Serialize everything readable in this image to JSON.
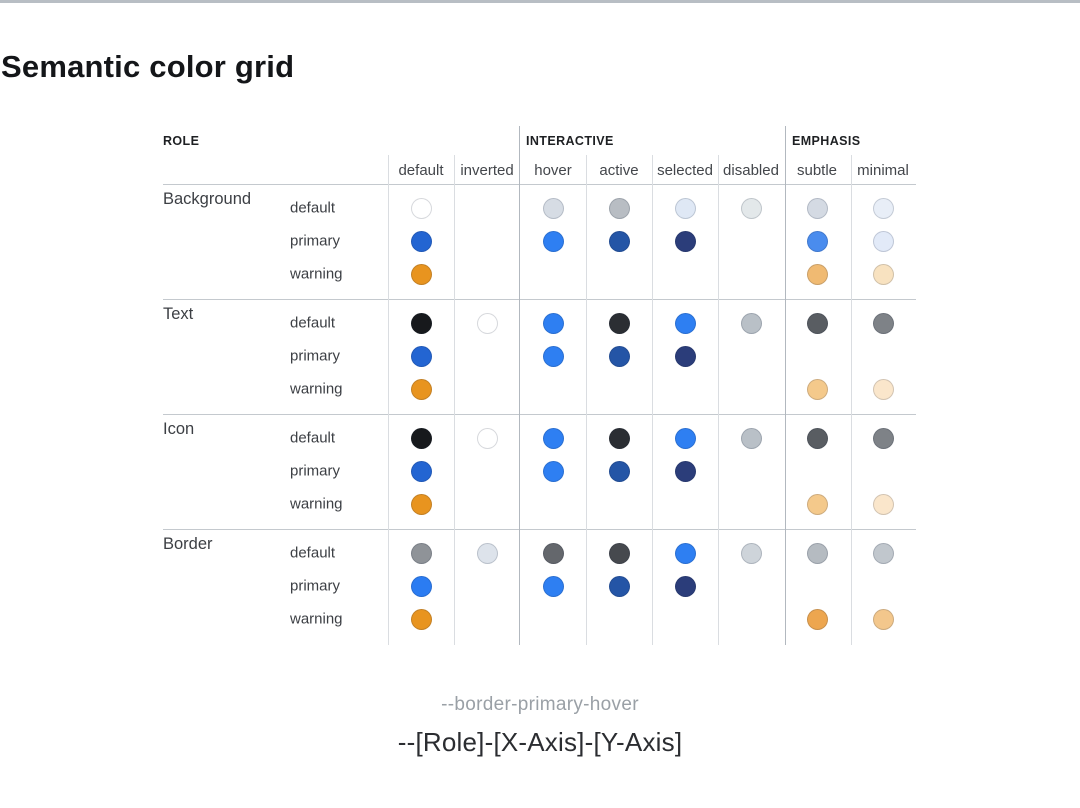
{
  "page": {
    "title": "Semantic color grid",
    "caption_example": "--border-primary-hover",
    "caption_formula": "--[Role]-[X-Axis]-[Y-Axis]"
  },
  "grid": {
    "group_headers": [
      {
        "id": "role",
        "label": "ROLE"
      },
      {
        "id": "interactive",
        "label": "INTERACTIVE"
      },
      {
        "id": "emphasis",
        "label": "EMPHASIS"
      }
    ],
    "columns": [
      "default",
      "inverted",
      "hover",
      "active",
      "selected",
      "disabled",
      "subtle",
      "minimal"
    ],
    "roles": [
      {
        "name": "Background",
        "rows": [
          {
            "variant": "default",
            "cells": [
              "#ffffff",
              null,
              "#d6dce4",
              "#b8bdc3",
              "#dfe8f5",
              "#e3e8ea",
              "#d4dae3",
              "#e8eef7"
            ]
          },
          {
            "variant": "primary",
            "cells": [
              "#2365d2",
              null,
              "#2e7ff2",
              "#2455a6",
              "#2b3d7a",
              null,
              "#4a8cee",
              "#e2eaf8"
            ]
          },
          {
            "variant": "warning",
            "cells": [
              "#e8941f",
              null,
              null,
              null,
              null,
              null,
              "#f0ba72",
              "#f8e2c0"
            ]
          }
        ]
      },
      {
        "name": "Text",
        "rows": [
          {
            "variant": "default",
            "cells": [
              "#17191c",
              "#ffffff",
              "#2e7ff2",
              "#2b2e33",
              "#2e7ff2",
              "#b9c0c7",
              "#595d62",
              "#7e8287"
            ]
          },
          {
            "variant": "primary",
            "cells": [
              "#2365d2",
              null,
              "#2e7ff2",
              "#2455a6",
              "#2b3d7a",
              null,
              null,
              null
            ]
          },
          {
            "variant": "warning",
            "cells": [
              "#e8941f",
              null,
              null,
              null,
              null,
              null,
              "#f4c98b",
              "#fae6cb"
            ]
          }
        ]
      },
      {
        "name": "Icon",
        "rows": [
          {
            "variant": "default",
            "cells": [
              "#17191c",
              "#ffffff",
              "#2e7ff2",
              "#2b2e33",
              "#2e7ff2",
              "#b9c0c7",
              "#595d62",
              "#7e8287"
            ]
          },
          {
            "variant": "primary",
            "cells": [
              "#2365d2",
              null,
              "#2e7ff2",
              "#2455a6",
              "#2b3d7a",
              null,
              null,
              null
            ]
          },
          {
            "variant": "warning",
            "cells": [
              "#e8941f",
              null,
              null,
              null,
              null,
              null,
              "#f4c98b",
              "#fae6cb"
            ]
          }
        ]
      },
      {
        "name": "Border",
        "rows": [
          {
            "variant": "default",
            "cells": [
              "#8f9398",
              "#dde3eb",
              "#64676c",
              "#46494e",
              "#2e7ff2",
              "#ced4da",
              "#b5bbc1",
              "#c1c7cd"
            ]
          },
          {
            "variant": "primary",
            "cells": [
              "#2b7cf2",
              null,
              "#2e7ff2",
              "#2455a6",
              "#2b3d7a",
              null,
              null,
              null
            ]
          },
          {
            "variant": "warning",
            "cells": [
              "#e8941f",
              null,
              null,
              null,
              null,
              null,
              "#eda64f",
              "#f3c78c"
            ]
          }
        ]
      }
    ]
  }
}
